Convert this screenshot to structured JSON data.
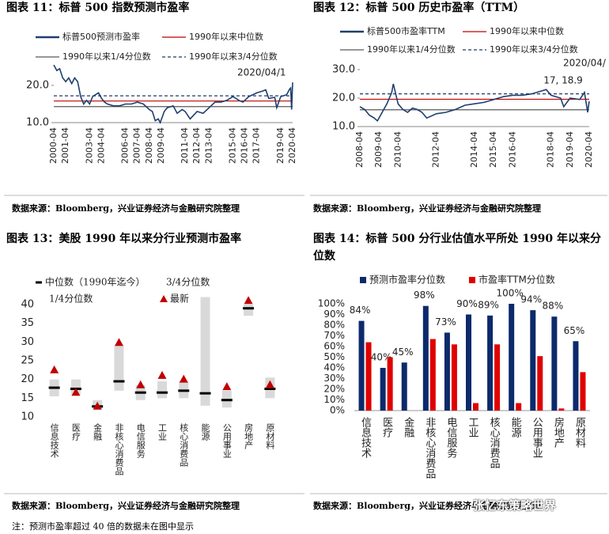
{
  "chart_data": [
    {
      "type": "line",
      "title": "图表 11：标普 500 指数预测市盈率",
      "source": "数据来源：Bloomberg，兴业证券经济与金融研究院整理",
      "x": [
        "2000-04",
        "2000-07",
        "2000-10",
        "2001-01",
        "2001-04",
        "2001-07",
        "2001-10",
        "2002-01",
        "2002-04",
        "2002-07",
        "2002-10",
        "2003-01",
        "2003-04",
        "2003-07",
        "2003-10",
        "2004-01",
        "2004-04",
        "2004-07",
        "2004-10",
        "2005-04",
        "2005-10",
        "2006-04",
        "2006-10",
        "2007-04",
        "2007-10",
        "2008-04",
        "2008-07",
        "2008-10",
        "2009-01",
        "2009-03",
        "2009-07",
        "2009-10",
        "2010-04",
        "2010-08",
        "2011-01",
        "2011-04",
        "2011-09",
        "2012-04",
        "2012-10",
        "2013-04",
        "2013-10",
        "2014-04",
        "2014-10",
        "2015-04",
        "2015-10",
        "2016-02",
        "2016-08",
        "2017-04",
        "2017-10",
        "2018-01",
        "2018-04",
        "2018-10",
        "2018-12",
        "2019-04",
        "2019-10",
        "2020-01",
        "2020-02",
        "2020-03",
        "2020-04"
      ],
      "series": [
        {
          "name": "标普500预测市盈率",
          "color": "#1f3f6e",
          "values": [
            25.5,
            24,
            24.5,
            22,
            21,
            22,
            20.5,
            22,
            21,
            17,
            15,
            16,
            15,
            17,
            17.5,
            18,
            16.5,
            15.5,
            15,
            14.5,
            14.5,
            15,
            15,
            15.5,
            15,
            13.5,
            13,
            10.5,
            11,
            10,
            13,
            14,
            14.5,
            12.5,
            13.5,
            13,
            11,
            13,
            12.5,
            14,
            15.5,
            15.5,
            16,
            17,
            16,
            15.5,
            17,
            18,
            18.5,
            18.8,
            16.5,
            16.8,
            14,
            17,
            17.5,
            19,
            19.3,
            13.5,
            20.8
          ]
        }
      ],
      "hlines": [
        {
          "name": "1990年以来中位数",
          "color": "#c00000",
          "value": 15.8,
          "dashed": false
        },
        {
          "name": "1990年以来1/4分位数",
          "color": "#595959",
          "value": 14.3,
          "dashed": false
        },
        {
          "name": "1990年以来3/4分位数",
          "color": "#1f3864",
          "value": 17.2,
          "dashed": true
        }
      ],
      "xlim": [
        "2000-04",
        "2020-04"
      ],
      "xticks": [
        "2000-04",
        "2001-04",
        "2003-04",
        "2004-04",
        "2006-04",
        "2007-04",
        "2008-04",
        "2009-04",
        "2011-04",
        "2012-04",
        "2013-04",
        "2015-04",
        "2016-04",
        "2017-04",
        "2019-04",
        "2020-04"
      ],
      "ylim": [
        10,
        27
      ],
      "yticks": [
        {
          "value": 10,
          "label": "10.0"
        },
        {
          "value": 20,
          "label": "20.0"
        }
      ],
      "annotation": [
        "2020/04/1"
      ]
    },
    {
      "type": "line",
      "title": "图表 12：标普 500 历史市盈率（TTM）",
      "source": "数据来源：Bloomberg，兴业证券经济与金融研究院整理",
      "x": [
        "2008-04",
        "2008-07",
        "2008-10",
        "2009-01",
        "2009-03",
        "2009-06",
        "2009-09",
        "2009-12",
        "2010-01",
        "2010-04",
        "2010-07",
        "2010-10",
        "2011-01",
        "2011-04",
        "2011-07",
        "2011-10",
        "2012-04",
        "2012-10",
        "2013-04",
        "2013-10",
        "2014-04",
        "2014-10",
        "2015-04",
        "2015-10",
        "2016-04",
        "2016-10",
        "2017-04",
        "2017-10",
        "2018-01",
        "2018-04",
        "2018-10",
        "2018-12",
        "2019-04",
        "2019-10",
        "2020-01",
        "2020-03",
        "2020-04"
      ],
      "series": [
        {
          "name": "标普500市盈率TTM",
          "color": "#1f3f6e",
          "values": [
            17,
            16,
            14,
            13,
            12,
            15,
            18,
            22,
            25,
            18,
            16,
            15,
            16.5,
            16,
            15,
            13,
            14.5,
            15,
            16,
            17.5,
            18,
            18.5,
            19.5,
            20.5,
            21,
            21,
            21.5,
            22.5,
            23,
            21,
            20,
            17,
            20,
            19.5,
            22,
            15,
            18.9
          ]
        }
      ],
      "hlines": [
        {
          "name": "1990年以来中位数",
          "color": "#c00000",
          "value": 19.6,
          "dashed": false
        },
        {
          "name": "1990年以来1/4分位数",
          "color": "#595959",
          "value": 15.9,
          "dashed": false
        },
        {
          "name": "1990年以来3/4分位数",
          "color": "#1f3864",
          "value": 21.5,
          "dashed": true
        }
      ],
      "xlim": [
        "2008-04",
        "2020-04"
      ],
      "xticks": [
        "2008-04",
        "2009-04",
        "2010-04",
        "2012-04",
        "2014-04",
        "2015-04",
        "2016-04",
        "2018-04",
        "2019-04",
        "2020-04"
      ],
      "ylim": [
        10,
        30
      ],
      "yticks": [
        {
          "value": 10,
          "label": "10.0"
        },
        {
          "value": 20,
          "label": "20.0"
        },
        {
          "value": 30,
          "label": "30.0"
        }
      ],
      "annotation": [
        "2020/04/",
        "17, 18.9"
      ]
    },
    {
      "type": "range",
      "title": "图表 13：美股 1990 年以来分行业预测市盈率",
      "source": "数据来源：Bloomberg，兴业证券经济与金融研究院整理",
      "categories": [
        "信息技术",
        "医疗",
        "金融",
        "非核心消费品",
        "电信服务",
        "工业",
        "核心消费品",
        "能源",
        "公用事业",
        "房地产",
        "原材料"
      ],
      "series": [
        {
          "name": "中位数（1990年迄今）",
          "color": "#000000",
          "values": [
            17.8,
            17.5,
            12.8,
            19.5,
            16.5,
            16.5,
            17,
            16.3,
            14.5,
            39,
            17.5
          ]
        },
        {
          "name": "3/4分位数",
          "color": "#d9d9d9",
          "values": [
            20,
            20,
            14.5,
            29,
            18.5,
            19.5,
            19.5,
            42,
            17,
            40,
            20.5
          ]
        },
        {
          "name": "1/4分位数",
          "color": "#d9d9d9",
          "values": [
            15.5,
            16,
            12,
            17,
            14.5,
            15,
            15,
            13,
            12.5,
            37,
            15
          ]
        },
        {
          "name": "最新",
          "color": "#c00000",
          "values": [
            22.5,
            16.5,
            12.8,
            29.8,
            18.5,
            21,
            20,
            null,
            18,
            41,
            18.5
          ]
        }
      ],
      "ylim": [
        10,
        42
      ],
      "yticks": [
        10,
        15,
        20,
        25,
        30,
        35,
        40
      ]
    },
    {
      "type": "bar",
      "title": "图表 14：标普 500 分行业估值水平所处 1990 年以来分位数",
      "source": "数据来源：Bloomberg，兴业证券经济与金融研究院整理",
      "categories": [
        "信息技术",
        "医疗",
        "金融",
        "非核心消费品",
        "电信服务",
        "工业",
        "核心消费品",
        "能源",
        "公用事业",
        "房地产",
        "原材料"
      ],
      "series": [
        {
          "name": "预测市盈率分位数",
          "color": "#0c2a6b",
          "values": [
            84,
            40,
            45,
            98,
            73,
            90,
            89,
            100,
            94,
            88,
            65
          ],
          "value_labels": [
            "84%",
            "40%",
            "45%",
            "98%",
            "73%",
            "90%",
            "89%",
            "100%",
            "94%",
            "88%",
            "65%"
          ]
        },
        {
          "name": "市盈率TTM分位数",
          "color": "#e00000",
          "values": [
            64,
            50,
            0,
            67,
            62,
            7,
            62,
            7,
            51,
            2,
            36
          ]
        }
      ],
      "ylim": [
        0,
        100
      ],
      "yticks": [
        {
          "value": 0,
          "label": "0%"
        },
        {
          "value": 10,
          "label": "10%"
        },
        {
          "value": 20,
          "label": "20%"
        },
        {
          "value": 30,
          "label": "30%"
        },
        {
          "value": 40,
          "label": "40%"
        },
        {
          "value": 50,
          "label": "50%"
        },
        {
          "value": 60,
          "label": "60%"
        },
        {
          "value": 70,
          "label": "70%"
        },
        {
          "value": 80,
          "label": "80%"
        },
        {
          "value": 90,
          "label": "90%"
        },
        {
          "value": 100,
          "label": "100%"
        }
      ]
    }
  ],
  "note": "注：预测市盈率超过 40 倍的数据未在图中显示",
  "watermark": "张忆东策略世界"
}
